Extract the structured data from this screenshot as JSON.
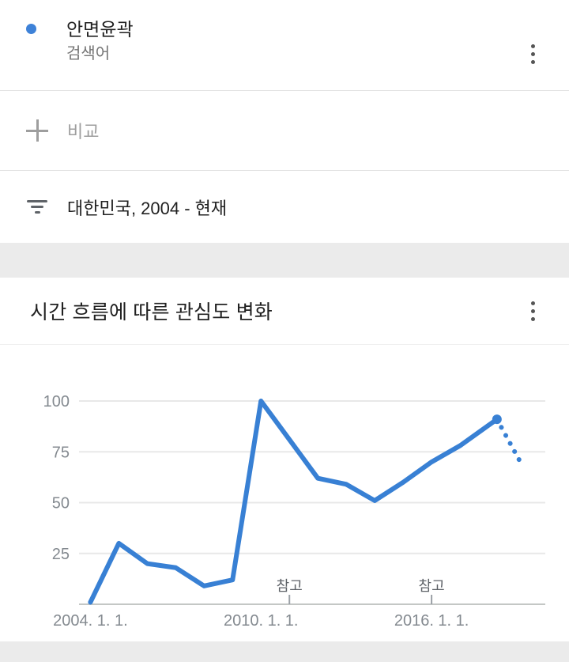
{
  "term_card": {
    "term": "안면윤곽",
    "type_label": "검색어",
    "dot_color": "#3e82d8"
  },
  "compare": {
    "label": "비교"
  },
  "filter": {
    "label": "대한민국, 2004 - 현재"
  },
  "chart_card": {
    "title": "시간 흐름에 따른 관심도 변화"
  },
  "chart_data": {
    "type": "line",
    "title": "시간 흐름에 따른 관심도 변화",
    "xlabel": "",
    "ylabel": "",
    "xlim": [
      2003.6,
      2020.0
    ],
    "ylim": [
      0,
      100
    ],
    "grid": true,
    "legend_position": "none",
    "y_ticks": [
      25,
      50,
      75,
      100
    ],
    "x_tick_labels": [
      {
        "x": 2004,
        "label": "2004. 1. 1."
      },
      {
        "x": 2010,
        "label": "2010. 1. 1."
      },
      {
        "x": 2016,
        "label": "2016. 1. 1."
      }
    ],
    "notes": [
      {
        "x": 2011,
        "label": "참고"
      },
      {
        "x": 2016,
        "label": "참고"
      }
    ],
    "series": [
      {
        "name": "안면윤곽",
        "color": "#3880d4",
        "points": [
          [
            2004,
            1
          ],
          [
            2005,
            30
          ],
          [
            2006,
            20
          ],
          [
            2007,
            18
          ],
          [
            2008,
            9
          ],
          [
            2009,
            12
          ],
          [
            2010,
            100
          ],
          [
            2011,
            81
          ],
          [
            2012,
            62
          ],
          [
            2013,
            59
          ],
          [
            2014,
            51
          ],
          [
            2015,
            60
          ],
          [
            2016,
            70
          ],
          [
            2017,
            78
          ],
          [
            2018,
            88
          ],
          [
            2018.3,
            91
          ]
        ]
      }
    ],
    "partial_series": {
      "style": "dotted",
      "points": [
        [
          2018.3,
          91
        ],
        [
          2019.2,
          68
        ]
      ]
    },
    "end_marker": [
      2018.3,
      91
    ]
  },
  "colors": {
    "accent_blue": "#3880d4",
    "grid_line": "#e8e8e8",
    "axis_line": "#c4c7c5"
  }
}
